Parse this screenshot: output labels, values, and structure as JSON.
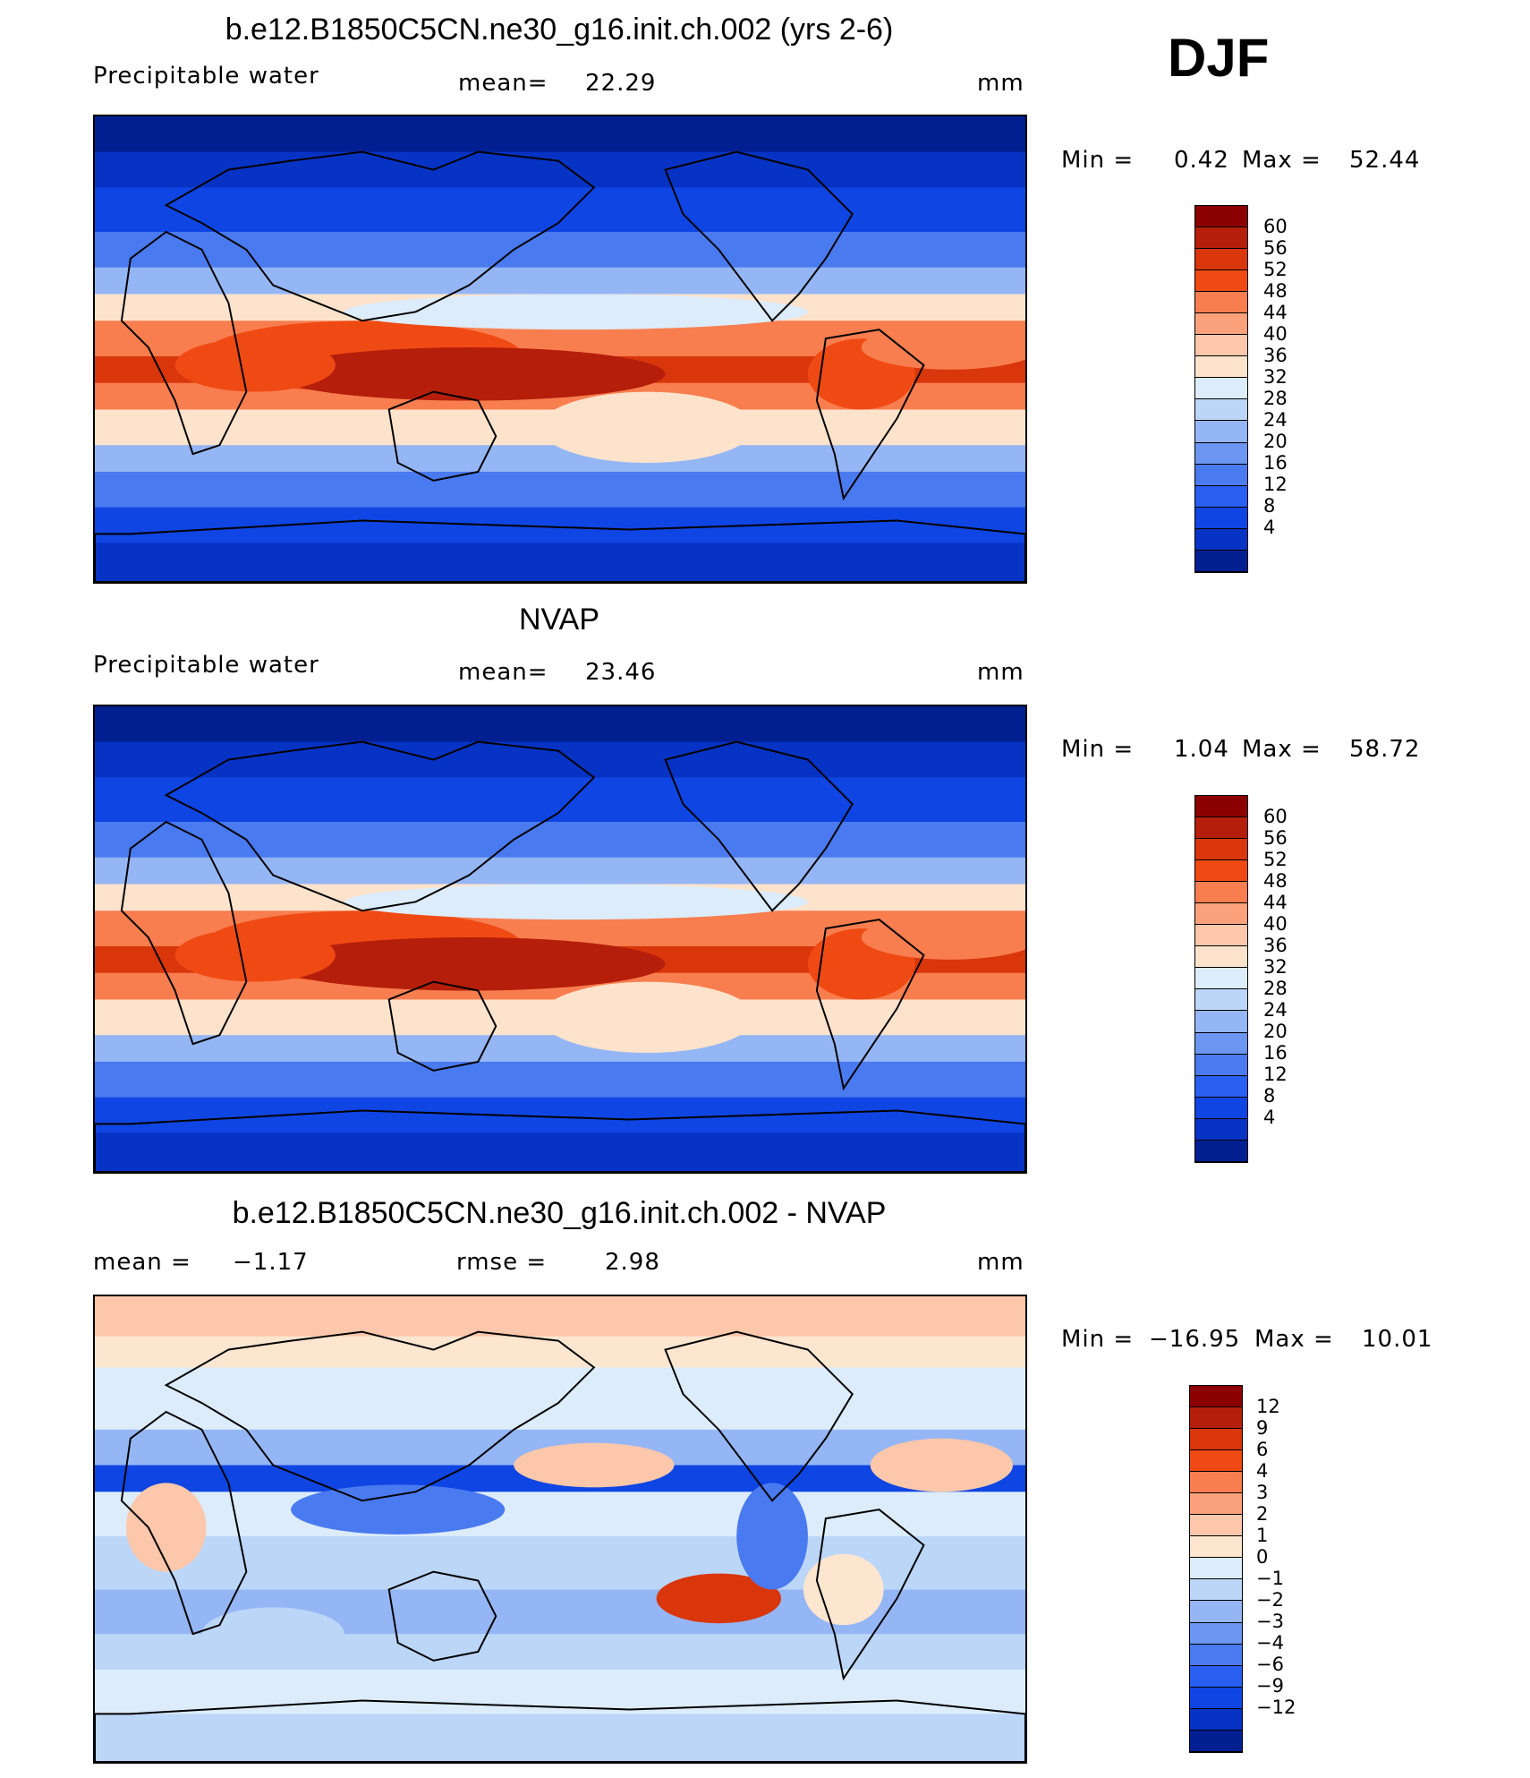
{
  "season": "DJF",
  "colors": {
    "main_scale": [
      "#8b0000",
      "#b51e0a",
      "#d9360c",
      "#f04a14",
      "#f87e4f",
      "#fba27d",
      "#fcc7ab",
      "#fde3cc",
      "#dcecfb",
      "#bcd6f8",
      "#95b6f5",
      "#6c96f2",
      "#4a7af0",
      "#285ff0",
      "#0f45e2",
      "#0733c5",
      "#021f92"
    ],
    "diff_scale": [
      "#8b0000",
      "#b51e0a",
      "#d9360c",
      "#f04a14",
      "#f87e4f",
      "#fba27d",
      "#fcc7ab",
      "#fde6cf",
      "#dcecfb",
      "#bcd6f8",
      "#95b6f5",
      "#6c96f2",
      "#4a7af0",
      "#285ff0",
      "#0f45e2",
      "#0733c5",
      "#021f92"
    ]
  },
  "chart_data": [
    {
      "type": "heatmap",
      "title": "b.e12.B1850C5CN.ne30_g16.init.ch.002 (yrs 2-6)",
      "left_label": "Precipitable  water",
      "stat_label": "mean=",
      "stat_value": "22.29",
      "units": "mm",
      "min_label": "Min  =",
      "min_value": "0.42",
      "max_label": "Max  =",
      "max_value": "52.44",
      "levels": [
        "60",
        "56",
        "52",
        "48",
        "44",
        "40",
        "36",
        "32",
        "28",
        "24",
        "20",
        "16",
        "12",
        "8",
        "4"
      ]
    },
    {
      "type": "heatmap",
      "title": "NVAP",
      "left_label": "Precipitable  water",
      "stat_label": "mean=",
      "stat_value": "23.46",
      "units": "mm",
      "min_label": "Min  =",
      "min_value": "1.04",
      "max_label": "Max  =",
      "max_value": "58.72",
      "levels": [
        "60",
        "56",
        "52",
        "48",
        "44",
        "40",
        "36",
        "32",
        "28",
        "24",
        "20",
        "16",
        "12",
        "8",
        "4"
      ]
    },
    {
      "type": "heatmap",
      "title": "b.e12.B1850C5CN.ne30_g16.init.ch.002 - NVAP",
      "mean_label": "mean  =",
      "mean_value": "−1.17",
      "rmse_label": "rmse  =",
      "rmse_value": "2.98",
      "units": "mm",
      "min_label": "Min  =",
      "min_value": "−16.95",
      "max_label": "Max  =",
      "max_value": "10.01",
      "levels": [
        "12",
        "9",
        "6",
        "4",
        "3",
        "2",
        "1",
        "0",
        "−1",
        "−2",
        "−3",
        "−4",
        "−6",
        "−9",
        "−12"
      ]
    }
  ]
}
